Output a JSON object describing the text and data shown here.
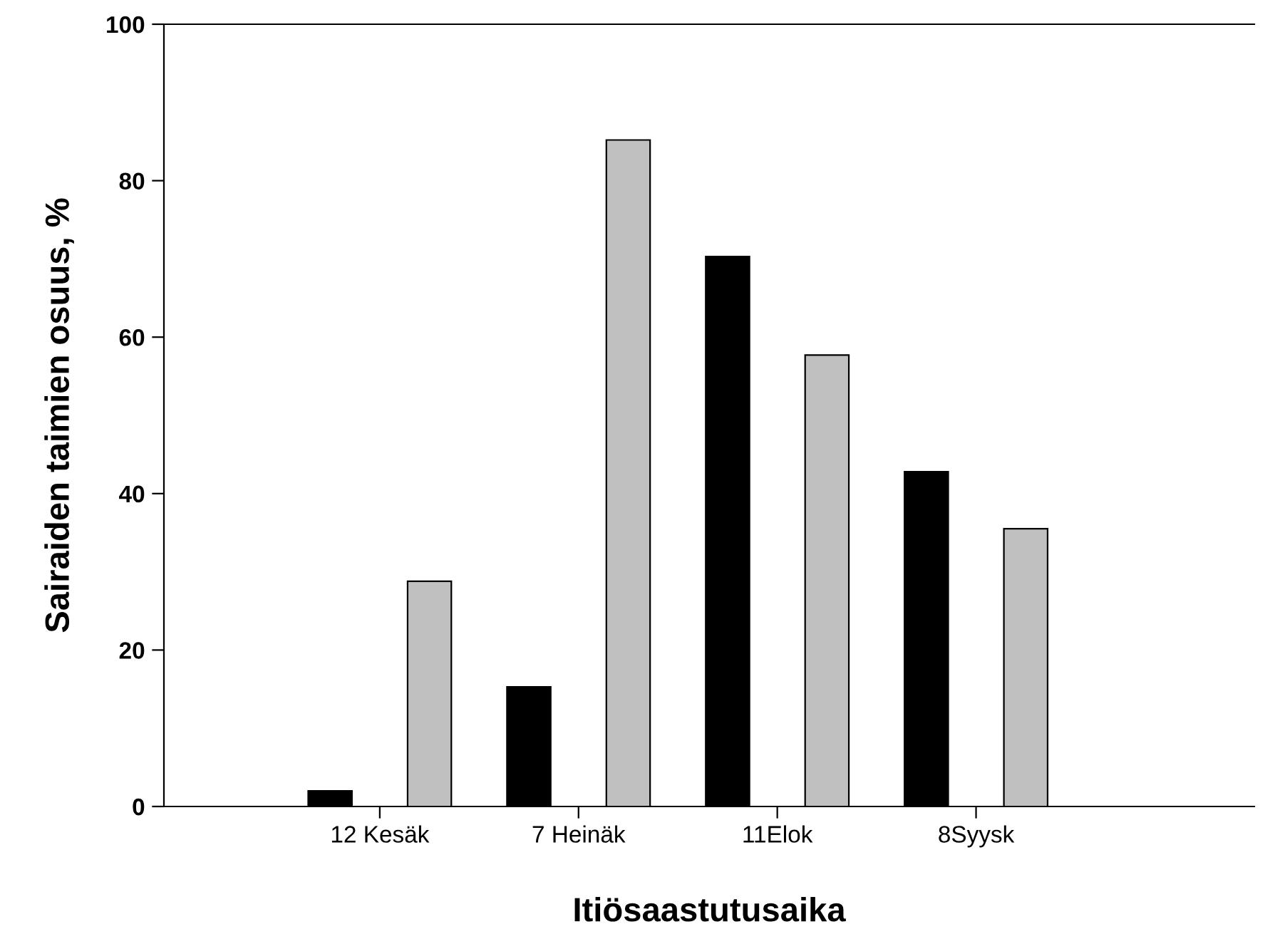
{
  "chart_data": {
    "type": "bar",
    "xlabel": "Itiösaastutusaika",
    "ylabel": "Sairaiden taimien osuus, %",
    "categories": [
      "12 Kesäk",
      "7 Heinäk",
      "11Elok",
      "8Syysk"
    ],
    "series": [
      {
        "color": "#000000",
        "values": [
          2.0,
          15.3,
          70.3,
          42.8
        ]
      },
      {
        "color": "#c0c0c0",
        "values": [
          28.8,
          85.2,
          57.7,
          35.5
        ]
      }
    ],
    "ylim": [
      0,
      100
    ],
    "yticks": [
      0,
      20,
      40,
      60,
      80,
      100
    ],
    "grid": false,
    "legend": false
  }
}
